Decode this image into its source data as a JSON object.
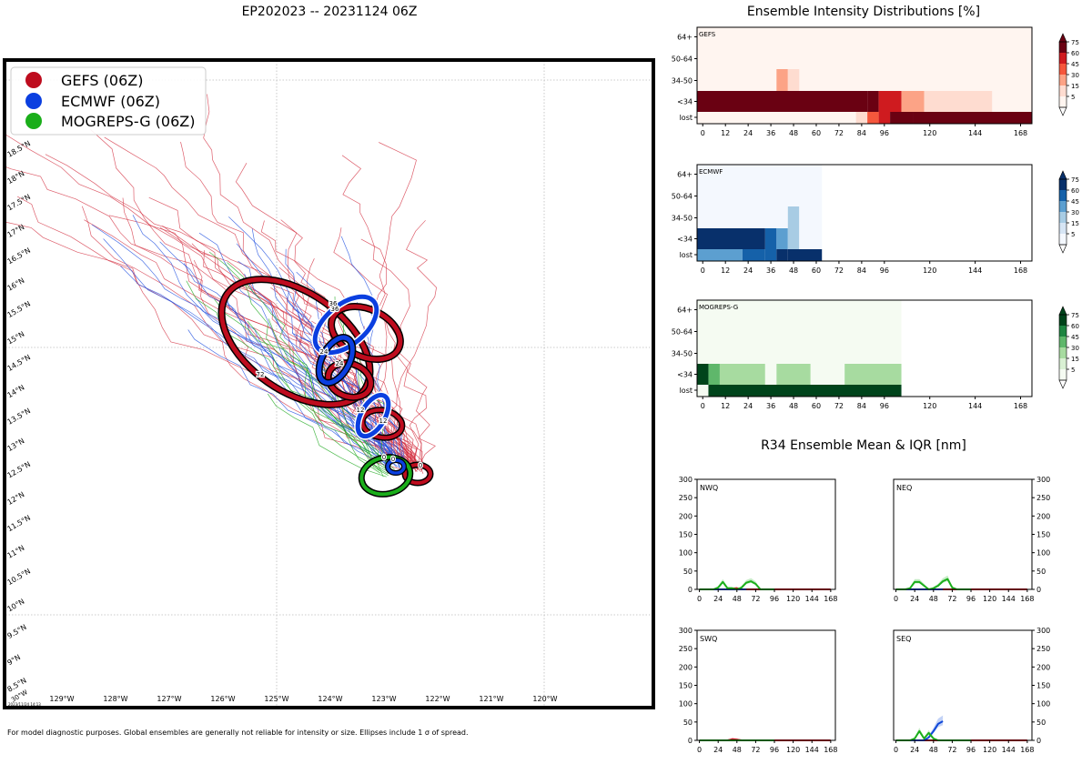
{
  "map": {
    "title": "EP202023 -- 20231124 06Z",
    "legend": [
      {
        "label": "GEFS (06Z)",
        "color": "#be0c1e"
      },
      {
        "label": "ECMWF (06Z)",
        "color": "#0b3fe0"
      },
      {
        "label": "MOGREPS-G (06Z)",
        "color": "#1aae1a"
      }
    ],
    "lon_labels": [
      "129°W",
      "128°W",
      "127°W",
      "126°W",
      "125°W",
      "124°W",
      "123°W",
      "122°W",
      "121°W",
      "120°W"
    ],
    "lat_labels": [
      "8.5°N",
      "9°N",
      "9.5°N",
      "10°N",
      "10.5°N",
      "11°N",
      "11.5°N",
      "12°N",
      "12.5°N",
      "13°N",
      "13.5°N",
      "14°N",
      "14.5°N",
      "15°N",
      "15.5°N",
      "16°N",
      "16.5°N",
      "17°N",
      "17.5°N",
      "18°N",
      "18.5°N"
    ],
    "corner_label": "30°W",
    "timestamp": "2023/11/24 14:13",
    "footnote": "For model diagnostic purposes. Global ensembles are generally not reliable for intensity or size. Ellipses include 1 σ of spread.",
    "ellipse_labels": {
      "gefs": [
        "0",
        "12",
        "24",
        "36",
        "72"
      ],
      "ecmwf": [
        "0",
        "12",
        "24",
        "36"
      ],
      "mogreps": [
        "0"
      ]
    }
  },
  "intensity": {
    "title": "Ensemble Intensity Distributions [%]",
    "y_categories": [
      "64+",
      "50-64",
      "34-50",
      "<34",
      "lost"
    ],
    "x_ticks": [
      "0",
      "12",
      "24",
      "36",
      "48",
      "60",
      "72",
      "84",
      "96",
      "120",
      "144",
      "168"
    ],
    "colorbar_ticks": [
      "75",
      "60",
      "45",
      "30",
      "15",
      "5"
    ],
    "models": [
      "GEFS",
      "ECMWF",
      "MOGREPS-G"
    ]
  },
  "r34": {
    "title": "R34 Ensemble Mean & IQR [nm]",
    "quadrants": [
      "NWQ",
      "NEQ",
      "SWQ",
      "SEQ"
    ],
    "y_ticks": [
      "300",
      "250",
      "200",
      "150",
      "100",
      "50",
      "0"
    ],
    "x_ticks": [
      "0",
      "24",
      "48",
      "72",
      "96",
      "120",
      "144",
      "168"
    ]
  },
  "chart_data": [
    {
      "type": "heatmap",
      "title": "GEFS",
      "x_hours": [
        0,
        12,
        24,
        36,
        48,
        60,
        72,
        84,
        96,
        120,
        144,
        168
      ],
      "rows": [
        "64+",
        "50-64",
        "34-50",
        "<34",
        "lost"
      ],
      "cells_pct": [
        {
          "row": "64+",
          "from": -3,
          "to": 174,
          "v": 3
        },
        {
          "row": "50-64",
          "from": -3,
          "to": 174,
          "v": 3
        },
        {
          "row": "34-50",
          "from": -3,
          "to": 174,
          "v": 3
        },
        {
          "row": "34-50",
          "from": 39,
          "to": 45,
          "v": 25
        },
        {
          "row": "34-50",
          "from": 45,
          "to": 51,
          "v": 10
        },
        {
          "row": "<34",
          "from": -3,
          "to": 87,
          "v": 95
        },
        {
          "row": "<34",
          "from": 87,
          "to": 93,
          "v": 75
        },
        {
          "row": "<34",
          "from": 93,
          "to": 105,
          "v": 45
        },
        {
          "row": "<34",
          "from": 105,
          "to": 117,
          "v": 25
        },
        {
          "row": "<34",
          "from": 117,
          "to": 153,
          "v": 10
        },
        {
          "row": "<34",
          "from": 153,
          "to": 174,
          "v": 3
        },
        {
          "row": "lost",
          "from": -3,
          "to": 81,
          "v": 3
        },
        {
          "row": "lost",
          "from": 81,
          "to": 87,
          "v": 10
        },
        {
          "row": "lost",
          "from": 87,
          "to": 93,
          "v": 40
        },
        {
          "row": "lost",
          "from": 93,
          "to": 99,
          "v": 55
        },
        {
          "row": "lost",
          "from": 99,
          "to": 111,
          "v": 75
        },
        {
          "row": "lost",
          "from": 111,
          "to": 174,
          "v": 95
        }
      ]
    },
    {
      "type": "heatmap",
      "title": "ECMWF",
      "x_hours": [
        0,
        12,
        24,
        36,
        48,
        60,
        72,
        84,
        96,
        120,
        144,
        168
      ],
      "rows": [
        "64+",
        "50-64",
        "34-50",
        "<34",
        "lost"
      ],
      "cells_pct": [
        {
          "row": "64+",
          "from": -3,
          "to": 63,
          "v": 3
        },
        {
          "row": "50-64",
          "from": -3,
          "to": 63,
          "v": 3
        },
        {
          "row": "34-50",
          "from": -3,
          "to": 45,
          "v": 3
        },
        {
          "row": "34-50",
          "from": 45,
          "to": 51,
          "v": 15
        },
        {
          "row": "34-50",
          "from": 51,
          "to": 63,
          "v": 3
        },
        {
          "row": "<34",
          "from": -3,
          "to": 33,
          "v": 75
        },
        {
          "row": "<34",
          "from": 33,
          "to": 39,
          "v": 60
        },
        {
          "row": "<34",
          "from": 39,
          "to": 45,
          "v": 30
        },
        {
          "row": "<34",
          "from": 45,
          "to": 51,
          "v": 15
        },
        {
          "row": "<34",
          "from": 51,
          "to": 63,
          "v": 3
        },
        {
          "row": "lost",
          "from": -3,
          "to": 21,
          "v": 30
        },
        {
          "row": "lost",
          "from": 21,
          "to": 33,
          "v": 45
        },
        {
          "row": "lost",
          "from": 33,
          "to": 39,
          "v": 60
        },
        {
          "row": "lost",
          "from": 39,
          "to": 45,
          "v": 75
        },
        {
          "row": "lost",
          "from": 45,
          "to": 63,
          "v": 95
        }
      ]
    },
    {
      "type": "heatmap",
      "title": "MOGREPS-G",
      "x_hours": [
        0,
        12,
        24,
        36,
        48,
        60,
        72,
        84,
        96,
        120,
        144,
        168
      ],
      "rows": [
        "64+",
        "50-64",
        "34-50",
        "<34",
        "lost"
      ],
      "cells_pct": [
        {
          "row": "64+",
          "from": -3,
          "to": 105,
          "v": 3
        },
        {
          "row": "50-64",
          "from": -3,
          "to": 105,
          "v": 3
        },
        {
          "row": "34-50",
          "from": -3,
          "to": 105,
          "v": 3
        },
        {
          "row": "<34",
          "from": -3,
          "to": 3,
          "v": 95
        },
        {
          "row": "<34",
          "from": 3,
          "to": 9,
          "v": 30
        },
        {
          "row": "<34",
          "from": 9,
          "to": 33,
          "v": 15
        },
        {
          "row": "<34",
          "from": 33,
          "to": 39,
          "v": 3
        },
        {
          "row": "<34",
          "from": 39,
          "to": 57,
          "v": 15
        },
        {
          "row": "<34",
          "from": 57,
          "to": 75,
          "v": 3
        },
        {
          "row": "<34",
          "from": 75,
          "to": 105,
          "v": 15
        },
        {
          "row": "lost",
          "from": -3,
          "to": 3,
          "v": 3
        },
        {
          "row": "lost",
          "from": 3,
          "to": 105,
          "v": 95
        }
      ]
    },
    {
      "type": "line",
      "title": "NWQ",
      "xlim": [
        -3,
        174
      ],
      "ylim": [
        0,
        300
      ],
      "series": [
        {
          "name": "GEFS",
          "x": [
            0,
            12,
            24,
            30,
            36,
            42,
            48,
            54,
            60,
            66,
            72,
            78,
            84,
            90,
            96,
            108,
            120,
            144,
            168
          ],
          "y": [
            0,
            0,
            0,
            0,
            0,
            2,
            3,
            0,
            0,
            0,
            0,
            0,
            0,
            0,
            0,
            0,
            0,
            0,
            0
          ]
        },
        {
          "name": "ECMWF",
          "x": [
            0,
            12,
            24,
            30,
            36,
            42,
            48,
            54,
            60
          ],
          "y": [
            0,
            0,
            0,
            0,
            0,
            0,
            0,
            0,
            0
          ]
        },
        {
          "name": "MOGREPS-G",
          "x": [
            0,
            12,
            18,
            24,
            30,
            36,
            42,
            48,
            54,
            60,
            66,
            72,
            78,
            84,
            96
          ],
          "y": [
            0,
            0,
            0,
            5,
            20,
            3,
            3,
            0,
            5,
            18,
            22,
            15,
            0,
            0,
            0
          ]
        }
      ]
    },
    {
      "type": "line",
      "title": "NEQ",
      "xlim": [
        -3,
        174
      ],
      "ylim": [
        0,
        300
      ],
      "series": [
        {
          "name": "GEFS",
          "x": [
            0,
            24,
            48,
            72,
            96,
            120,
            144,
            168
          ],
          "y": [
            0,
            0,
            0,
            0,
            0,
            0,
            0,
            0
          ]
        },
        {
          "name": "ECMWF",
          "x": [
            0,
            12,
            24,
            30,
            36,
            42,
            48,
            54,
            60
          ],
          "y": [
            0,
            0,
            0,
            0,
            0,
            0,
            0,
            0,
            0
          ]
        },
        {
          "name": "MOGREPS-G",
          "x": [
            0,
            12,
            18,
            24,
            30,
            36,
            42,
            48,
            54,
            60,
            66,
            72,
            78,
            84,
            96
          ],
          "y": [
            0,
            0,
            3,
            20,
            20,
            10,
            0,
            3,
            10,
            22,
            28,
            5,
            0,
            0,
            0
          ]
        }
      ]
    },
    {
      "type": "line",
      "title": "SWQ",
      "xlim": [
        -3,
        174
      ],
      "ylim": [
        0,
        300
      ],
      "series": [
        {
          "name": "GEFS",
          "x": [
            0,
            24,
            36,
            42,
            48,
            54,
            60,
            72,
            96,
            120,
            144,
            168
          ],
          "y": [
            0,
            0,
            0,
            3,
            2,
            0,
            0,
            0,
            0,
            0,
            0,
            0
          ]
        },
        {
          "name": "ECMWF",
          "x": [
            0,
            12,
            24,
            36,
            48,
            60
          ],
          "y": [
            0,
            0,
            0,
            0,
            0,
            0
          ]
        },
        {
          "name": "MOGREPS-G",
          "x": [
            0,
            24,
            48,
            72,
            96
          ],
          "y": [
            0,
            0,
            0,
            0,
            0
          ]
        }
      ]
    },
    {
      "type": "line",
      "title": "SEQ",
      "xlim": [
        -3,
        174
      ],
      "ylim": [
        0,
        300
      ],
      "series": [
        {
          "name": "GEFS",
          "x": [
            0,
            24,
            48,
            72,
            96,
            120,
            144,
            168
          ],
          "y": [
            0,
            0,
            0,
            0,
            0,
            0,
            0,
            0
          ]
        },
        {
          "name": "ECMWF",
          "x": [
            0,
            12,
            24,
            30,
            36,
            42,
            48,
            54,
            60
          ],
          "y": [
            0,
            0,
            0,
            0,
            0,
            8,
            25,
            45,
            52
          ]
        },
        {
          "name": "MOGREPS-G",
          "x": [
            0,
            12,
            18,
            24,
            30,
            36,
            42,
            48,
            54,
            60,
            72,
            84,
            96
          ],
          "y": [
            0,
            0,
            0,
            5,
            25,
            5,
            20,
            5,
            0,
            0,
            0,
            0,
            0
          ]
        }
      ]
    }
  ]
}
